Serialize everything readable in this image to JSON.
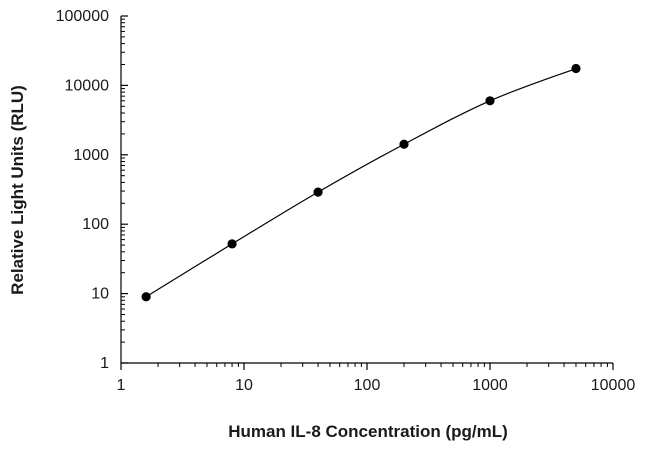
{
  "chart_data": {
    "type": "scatter",
    "title": "",
    "xlabel": "Human IL-8 Concentration (pg/mL)",
    "ylabel": "Relative Light Units (RLU)",
    "x_scale": "log",
    "y_scale": "log",
    "xlim": [
      1,
      10000
    ],
    "ylim": [
      1,
      100000
    ],
    "x_ticks": [
      "1",
      "10",
      "100",
      "1000",
      "10000"
    ],
    "y_ticks": [
      "1",
      "10",
      "100",
      "1000",
      "10000",
      "100000"
    ],
    "grid": false,
    "legend": "none",
    "fitted_curve": true,
    "marker_color": "#000000",
    "line_color": "#000000",
    "series": [
      {
        "x": [
          1.6,
          8,
          40,
          200,
          1000,
          5000
        ],
        "y": [
          9,
          52,
          290,
          1420,
          6000,
          17500
        ]
      }
    ]
  }
}
